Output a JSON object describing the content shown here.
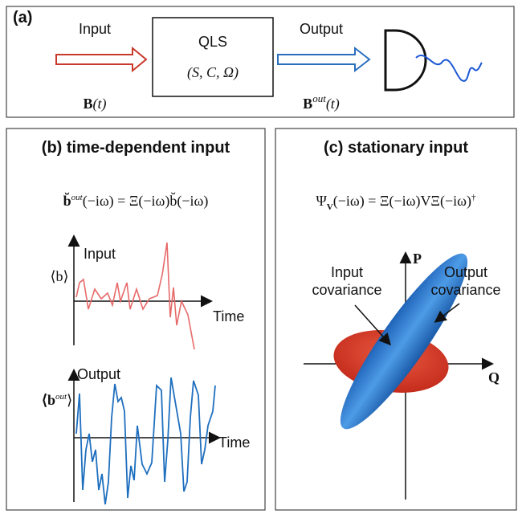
{
  "panel_a": {
    "label": "(a)",
    "input": "Input",
    "input_formula": {
      "base": "B",
      "arg": "(t)"
    },
    "system": {
      "name": "QLS",
      "params": "(S, C, Ω)"
    },
    "output": "Output",
    "output_formula": {
      "base": "B",
      "sup": "out",
      "arg": "(t)"
    }
  },
  "panel_b": {
    "title": "(b) time-dependent input",
    "equation": {
      "lhs": "b̆",
      "sup": "out",
      "rest": "(−iω) = Ξ(−iω)b̆(−iω)"
    },
    "input_plot": {
      "label": "Input",
      "y_label": "⟨b⟩",
      "x_label": "Time"
    },
    "output_plot": {
      "label": "Output",
      "y_label": {
        "base": "⟨b",
        "sup": "out",
        "end": "⟩"
      },
      "x_label": "Time"
    }
  },
  "panel_c": {
    "title": "(c) stationary input",
    "equation": {
      "lhs": "Ψ",
      "sub": "V",
      "rest": "(−iω) = Ξ(−iω)VΞ(−iω)",
      "sup": "†"
    },
    "y_axis": "P",
    "x_axis": "Q",
    "input_label": [
      "Input",
      "covariance"
    ],
    "output_label": [
      "Output",
      "covariance"
    ]
  }
}
